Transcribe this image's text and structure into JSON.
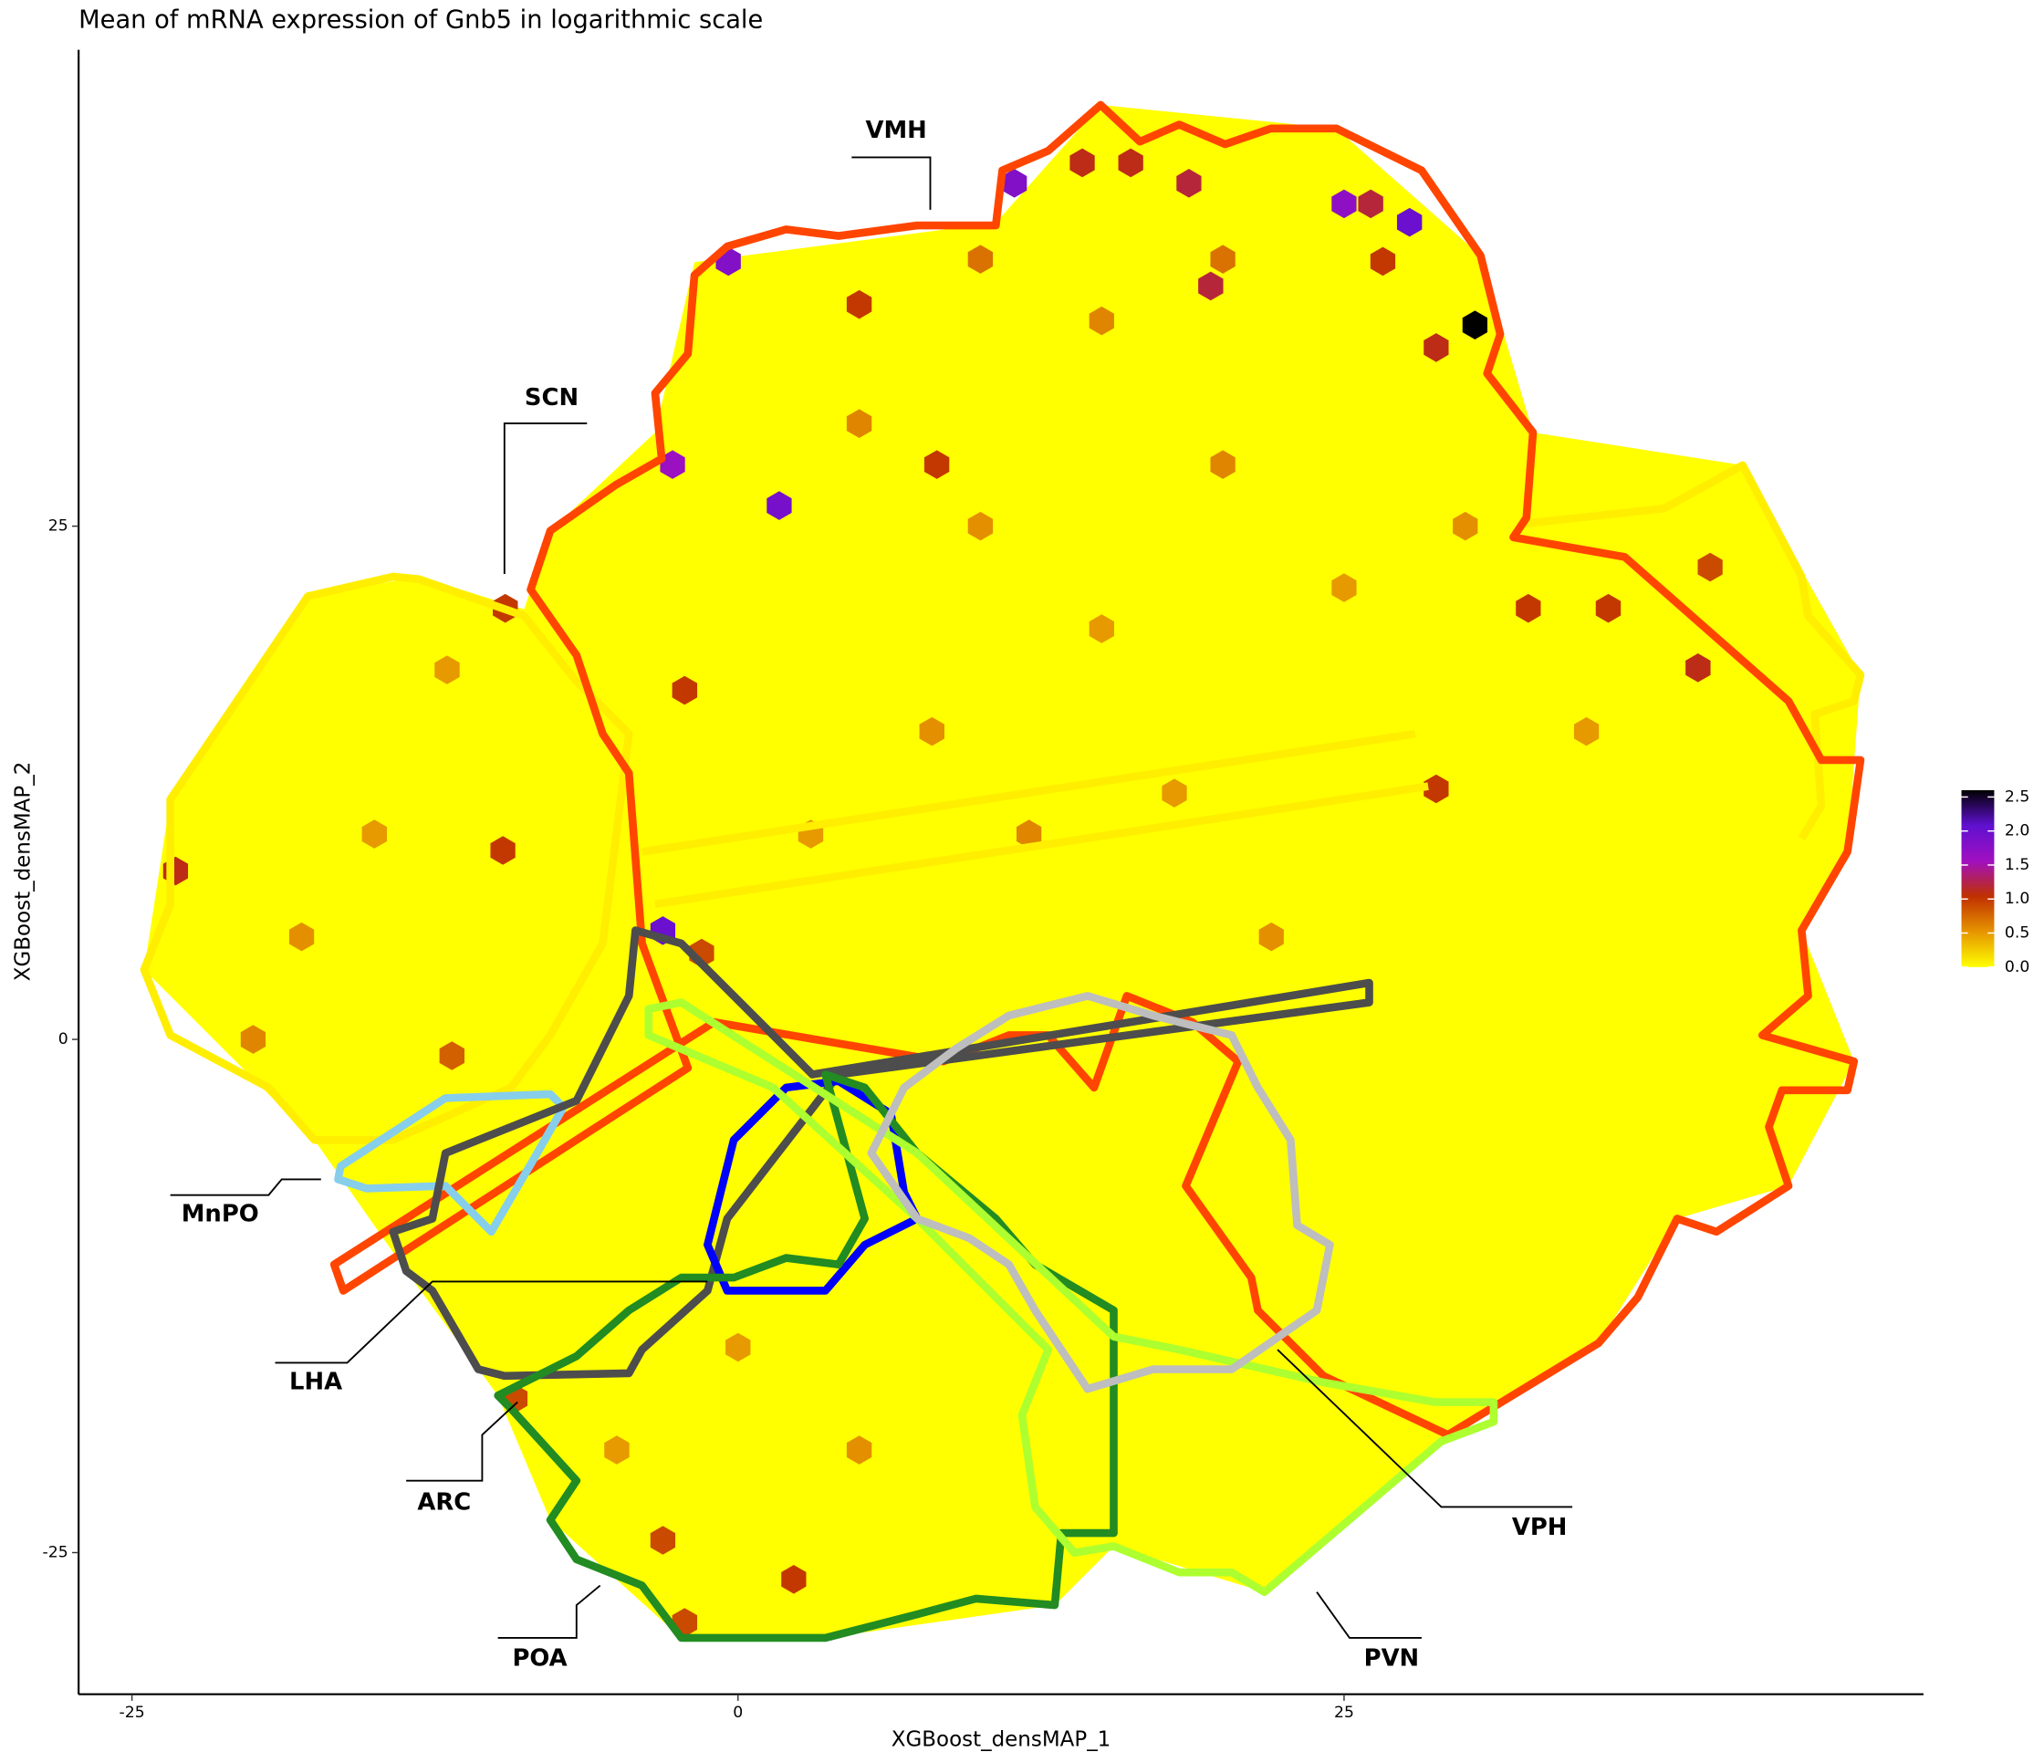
{
  "chart_data": {
    "type": "hexbin",
    "title": "Mean of mRNA expression of Gnb5 in logarithmic scale",
    "x_label": "XGBoost_densMAP_1",
    "y_label": "XGBoost_densMAP_2",
    "xlim": [
      -27.2,
      48.9
    ],
    "ylim": [
      -31.9,
      48.2
    ],
    "xticks": [
      -25,
      0,
      25
    ],
    "yticks": [
      -25,
      0,
      25
    ],
    "regions": [
      "VMH",
      "SCN",
      "MnPO",
      "LHA",
      "ARC",
      "POA",
      "VPH",
      "PVN"
    ],
    "x": [
      30.4,
      27.7,
      25.0,
      11.4,
      -0.4,
      -2.7,
      1.7,
      -3.1,
      14.2,
      16.2,
      18.6,
      19.5,
      26.1,
      28.8,
      26.6,
      5.0,
      8.2,
      -9.6,
      -23.2,
      -9.7,
      -2.2,
      39.6,
      35.9,
      32.6,
      28.8,
      -9.2,
      -3.1,
      2.3,
      -2.2,
      -11.8,
      -1.5,
      40.1,
      5,
      10,
      15,
      20,
      25,
      8,
      12,
      18,
      22,
      3,
      -15,
      -18,
      -20,
      -12,
      0,
      5,
      -5,
      35,
      15,
      30,
      10,
      20
    ],
    "y": [
      34.8,
      39.8,
      40.7,
      41.7,
      37.9,
      28.0,
      26.0,
      5.3,
      42.7,
      42.7,
      41.7,
      36.7,
      40.7,
      33.7,
      37.9,
      35.8,
      28.0,
      21.0,
      8.2,
      9.2,
      17.0,
      18.1,
      21.0,
      21.0,
      12.2,
      -17.5,
      -24.4,
      -26.3,
      -28.4,
      -0.8,
      4.2,
      23.0,
      30,
      25,
      20,
      28,
      22,
      15,
      10,
      12,
      5,
      10,
      10,
      5,
      0,
      18,
      -15,
      -20,
      -20,
      15,
      35,
      25,
      38,
      38
    ],
    "values": [
      2.6,
      2.0,
      1.7,
      1.8,
      1.8,
      1.6,
      1.9,
      2.0,
      1.1,
      1.1,
      1.2,
      1.2,
      1.2,
      1.1,
      1.0,
      1.0,
      1.0,
      1.0,
      1.1,
      1.0,
      1.0,
      1.1,
      1.0,
      1.0,
      1.0,
      0.9,
      0.9,
      1.0,
      0.9,
      0.8,
      0.9,
      0.9,
      0.6,
      0.55,
      0.5,
      0.6,
      0.5,
      0.55,
      0.6,
      0.5,
      0.55,
      0.5,
      0.5,
      0.55,
      0.6,
      0.5,
      0.5,
      0.55,
      0.5,
      0.5,
      0.6,
      0.55,
      0.7,
      0.7
    ],
    "colorbar": {
      "lim": [
        0,
        2.6
      ],
      "colors": [
        "#ffff00",
        "#e69500",
        "#c03000",
        "#a010c0",
        "#6010d0",
        "#000000"
      ],
      "ticks": [
        {
          "value": 0,
          "label": "0.0"
        },
        {
          "value": 0.5,
          "label": "0.5"
        },
        {
          "value": 1,
          "label": "1.0"
        },
        {
          "value": 1.5,
          "label": "1.5"
        },
        {
          "value": 2,
          "label": "2.0"
        },
        {
          "value": 2.5,
          "label": "2.5"
        }
      ]
    }
  }
}
